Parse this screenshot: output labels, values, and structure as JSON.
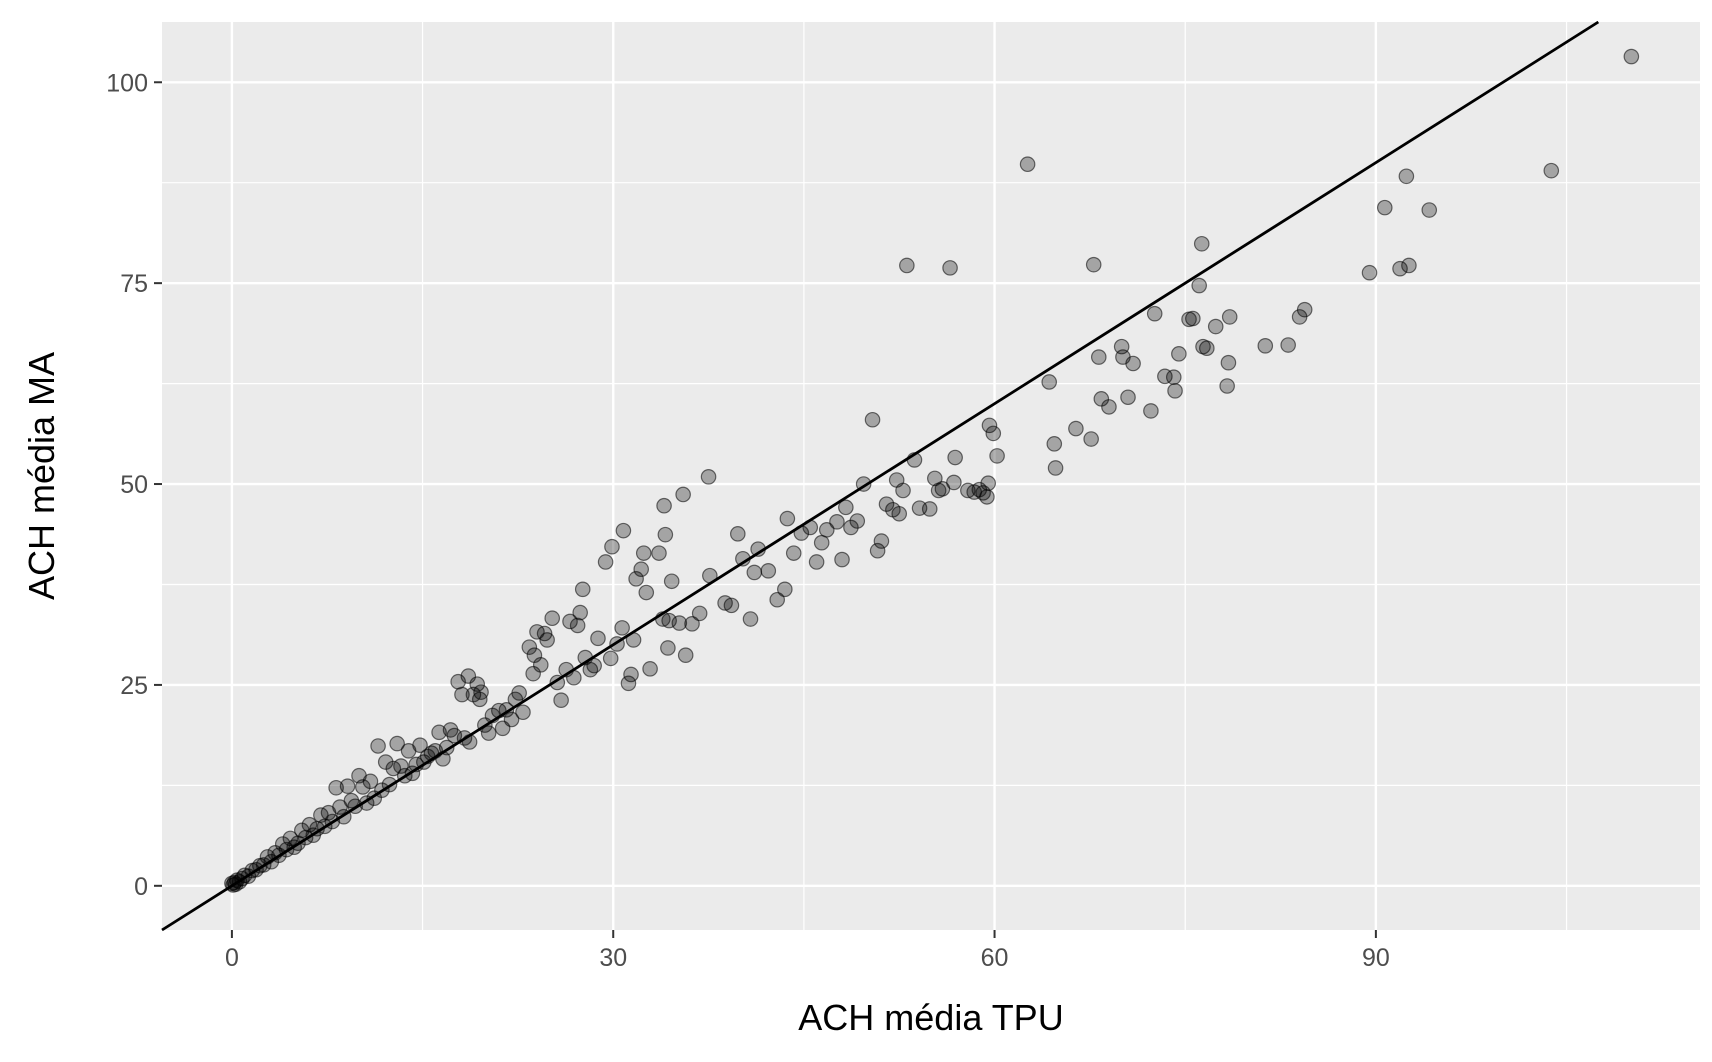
{
  "chart_data": {
    "type": "scatter",
    "title": "",
    "xlabel": "ACH média TPU",
    "ylabel": "ACH média MA",
    "xlim": [
      -5.5,
      115.5
    ],
    "ylim": [
      -5.5,
      107.5
    ],
    "x_ticks": [
      0,
      30,
      60,
      90
    ],
    "y_ticks": [
      0,
      25,
      50,
      75,
      100
    ],
    "x_tick_labels": [
      "0",
      "30",
      "60",
      "90"
    ],
    "y_tick_labels": [
      "0",
      "25",
      "50",
      "75",
      "100"
    ],
    "grid": true,
    "legend": "none",
    "panel_background": "#ebebeb",
    "grid_color": "#ffffff",
    "point_color": "#000000",
    "point_opacity": 0.3,
    "reference_line": {
      "type": "identity",
      "slope": 1,
      "intercept": 0,
      "color": "#000000"
    },
    "series": [
      {
        "points": [
          [
            110.1,
            103.2
          ],
          [
            103.8,
            89.0
          ],
          [
            94.2,
            84.1
          ],
          [
            92.6,
            77.2
          ],
          [
            92.4,
            88.3
          ],
          [
            91.9,
            76.8
          ],
          [
            90.7,
            84.4
          ],
          [
            89.5,
            76.3
          ],
          [
            84.4,
            71.7
          ],
          [
            84.0,
            70.8
          ],
          [
            83.1,
            67.3
          ],
          [
            81.3,
            67.2
          ],
          [
            78.5,
            70.8
          ],
          [
            78.4,
            65.1
          ],
          [
            78.3,
            62.2
          ],
          [
            77.4,
            69.6
          ],
          [
            76.3,
            79.9
          ],
          [
            76.1,
            74.7
          ],
          [
            76.4,
            67.1
          ],
          [
            76.7,
            66.9
          ],
          [
            75.6,
            70.6
          ],
          [
            75.3,
            70.5
          ],
          [
            74.5,
            66.2
          ],
          [
            74.1,
            63.3
          ],
          [
            74.2,
            61.6
          ],
          [
            73.4,
            63.4
          ],
          [
            72.6,
            71.2
          ],
          [
            72.3,
            59.1
          ],
          [
            70.9,
            65.0
          ],
          [
            70.5,
            60.8
          ],
          [
            70.0,
            67.1
          ],
          [
            70.1,
            65.8
          ],
          [
            69.0,
            59.6
          ],
          [
            68.2,
            65.8
          ],
          [
            68.4,
            60.6
          ],
          [
            67.8,
            77.3
          ],
          [
            67.6,
            55.6
          ],
          [
            66.4,
            56.9
          ],
          [
            64.8,
            52.0
          ],
          [
            64.7,
            55.0
          ],
          [
            64.3,
            62.7
          ],
          [
            62.6,
            89.8
          ],
          [
            60.2,
            53.5
          ],
          [
            59.9,
            56.3
          ],
          [
            59.6,
            57.3
          ],
          [
            59.5,
            50.1
          ],
          [
            59.4,
            48.4
          ],
          [
            59.1,
            48.9
          ],
          [
            58.8,
            49.3
          ],
          [
            58.4,
            49.0
          ],
          [
            57.9,
            49.2
          ],
          [
            56.9,
            53.3
          ],
          [
            56.8,
            50.2
          ],
          [
            56.5,
            76.9
          ],
          [
            55.9,
            49.4
          ],
          [
            55.6,
            49.2
          ],
          [
            55.3,
            50.7
          ],
          [
            54.9,
            46.9
          ],
          [
            54.1,
            47.0
          ],
          [
            53.7,
            53.0
          ],
          [
            53.1,
            77.2
          ],
          [
            52.8,
            49.2
          ],
          [
            52.5,
            46.3
          ],
          [
            52.3,
            50.5
          ],
          [
            52.0,
            46.8
          ],
          [
            51.5,
            47.5
          ],
          [
            51.1,
            42.9
          ],
          [
            50.8,
            41.7
          ],
          [
            50.4,
            58.0
          ],
          [
            49.7,
            50.0
          ],
          [
            49.2,
            45.4
          ],
          [
            48.7,
            44.6
          ],
          [
            48.3,
            47.1
          ],
          [
            48.0,
            40.6
          ],
          [
            47.6,
            45.3
          ],
          [
            46.8,
            44.3
          ],
          [
            46.4,
            42.7
          ],
          [
            46.0,
            40.3
          ],
          [
            45.5,
            44.6
          ],
          [
            44.8,
            43.9
          ],
          [
            44.2,
            41.4
          ],
          [
            43.7,
            45.7
          ],
          [
            43.5,
            36.9
          ],
          [
            42.9,
            35.6
          ],
          [
            42.2,
            39.2
          ],
          [
            41.4,
            41.9
          ],
          [
            41.1,
            39.0
          ],
          [
            40.8,
            33.2
          ],
          [
            40.2,
            40.7
          ],
          [
            39.8,
            43.8
          ],
          [
            39.3,
            34.9
          ],
          [
            38.8,
            35.2
          ],
          [
            37.6,
            38.6
          ],
          [
            37.5,
            50.9
          ],
          [
            36.8,
            33.9
          ],
          [
            36.2,
            32.6
          ],
          [
            35.7,
            28.7
          ],
          [
            35.5,
            48.7
          ],
          [
            35.2,
            32.7
          ],
          [
            34.6,
            37.9
          ],
          [
            34.4,
            33.0
          ],
          [
            34.3,
            29.6
          ],
          [
            34.1,
            43.7
          ],
          [
            34.0,
            47.3
          ],
          [
            33.9,
            33.2
          ],
          [
            33.6,
            41.4
          ],
          [
            32.9,
            27.0
          ],
          [
            32.6,
            36.5
          ],
          [
            32.4,
            41.4
          ],
          [
            32.2,
            39.4
          ],
          [
            31.8,
            38.2
          ],
          [
            31.6,
            30.6
          ],
          [
            31.4,
            26.3
          ],
          [
            31.2,
            25.2
          ],
          [
            30.8,
            44.2
          ],
          [
            30.7,
            32.1
          ],
          [
            30.3,
            30.1
          ],
          [
            29.9,
            42.2
          ],
          [
            29.8,
            28.3
          ],
          [
            29.4,
            40.3
          ],
          [
            28.8,
            30.8
          ],
          [
            28.5,
            27.4
          ],
          [
            28.2,
            26.9
          ],
          [
            27.8,
            28.4
          ],
          [
            27.6,
            36.9
          ],
          [
            27.4,
            34.0
          ],
          [
            27.2,
            32.4
          ],
          [
            26.9,
            25.9
          ],
          [
            26.6,
            32.9
          ],
          [
            26.3,
            26.9
          ],
          [
            25.9,
            23.1
          ],
          [
            25.6,
            25.3
          ],
          [
            25.2,
            33.3
          ],
          [
            24.8,
            30.6
          ],
          [
            24.6,
            31.4
          ],
          [
            24.3,
            27.5
          ],
          [
            24.0,
            31.6
          ],
          [
            23.8,
            28.7
          ],
          [
            23.7,
            26.4
          ],
          [
            23.4,
            29.7
          ],
          [
            22.9,
            21.6
          ],
          [
            22.6,
            24.0
          ],
          [
            22.3,
            23.2
          ],
          [
            22.0,
            20.7
          ],
          [
            21.6,
            21.9
          ],
          [
            21.3,
            19.6
          ],
          [
            21.0,
            21.8
          ],
          [
            20.5,
            21.2
          ],
          [
            20.2,
            19.0
          ],
          [
            19.9,
            20.0
          ],
          [
            19.6,
            24.1
          ],
          [
            19.5,
            23.2
          ],
          [
            19.3,
            25.1
          ],
          [
            19.0,
            23.8
          ],
          [
            18.7,
            17.9
          ],
          [
            18.6,
            26.1
          ],
          [
            18.3,
            18.4
          ],
          [
            18.1,
            23.8
          ],
          [
            17.8,
            25.4
          ],
          [
            17.5,
            18.7
          ],
          [
            17.2,
            19.4
          ],
          [
            16.9,
            17.2
          ],
          [
            16.6,
            15.8
          ],
          [
            16.3,
            19.1
          ],
          [
            16.0,
            16.8
          ],
          [
            15.7,
            16.5
          ],
          [
            15.4,
            16.1
          ],
          [
            15.1,
            15.4
          ],
          [
            14.8,
            17.5
          ],
          [
            14.5,
            15.1
          ],
          [
            14.2,
            14.0
          ],
          [
            13.9,
            16.8
          ],
          [
            13.6,
            13.7
          ],
          [
            13.3,
            14.9
          ],
          [
            13.0,
            17.7
          ],
          [
            12.7,
            14.6
          ],
          [
            12.4,
            12.6
          ],
          [
            12.1,
            15.4
          ],
          [
            11.8,
            11.9
          ],
          [
            11.5,
            17.4
          ],
          [
            11.2,
            10.9
          ],
          [
            10.9,
            13.0
          ],
          [
            10.6,
            10.3
          ],
          [
            10.3,
            12.3
          ],
          [
            10.0,
            13.7
          ],
          [
            9.7,
            9.9
          ],
          [
            9.4,
            10.6
          ],
          [
            9.1,
            12.4
          ],
          [
            8.8,
            8.6
          ],
          [
            8.5,
            9.8
          ],
          [
            8.2,
            12.2
          ],
          [
            7.9,
            8.0
          ],
          [
            7.6,
            9.1
          ],
          [
            7.3,
            7.4
          ],
          [
            7.0,
            8.8
          ],
          [
            6.7,
            7.1
          ],
          [
            6.4,
            6.3
          ],
          [
            6.1,
            7.6
          ],
          [
            5.8,
            6.0
          ],
          [
            5.5,
            6.9
          ],
          [
            5.2,
            5.3
          ],
          [
            4.9,
            4.8
          ],
          [
            4.6,
            5.9
          ],
          [
            4.3,
            4.5
          ],
          [
            4.0,
            5.2
          ],
          [
            3.7,
            3.8
          ],
          [
            3.4,
            4.1
          ],
          [
            3.1,
            3.0
          ],
          [
            2.8,
            3.6
          ],
          [
            2.5,
            2.6
          ],
          [
            2.2,
            2.5
          ],
          [
            1.9,
            2.0
          ],
          [
            1.6,
            1.9
          ],
          [
            1.3,
            1.2
          ],
          [
            1.0,
            1.3
          ],
          [
            0.8,
            0.9
          ],
          [
            0.6,
            0.5
          ],
          [
            0.4,
            0.7
          ],
          [
            0.3,
            0.2
          ],
          [
            0.2,
            0.4
          ],
          [
            0.1,
            0.1
          ],
          [
            0.0,
            0.3
          ]
        ]
      }
    ]
  }
}
